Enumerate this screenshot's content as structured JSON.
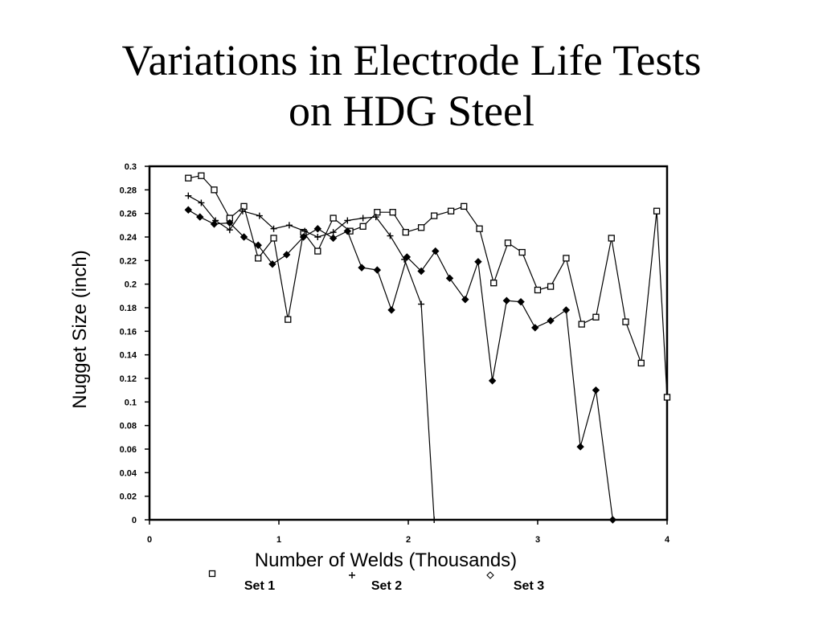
{
  "slide": {
    "title_line1": "Variations in Electrode Life Tests",
    "title_line2": "on HDG Steel"
  },
  "chart_data": {
    "type": "line",
    "title": "",
    "xlabel": "Number of Welds (Thousands)",
    "ylabel": "Nugget Size (inch)",
    "xlim": [
      0,
      4
    ],
    "ylim": [
      0,
      0.3
    ],
    "x_ticks": [
      "0",
      "1",
      "2",
      "3",
      "4"
    ],
    "y_ticks": [
      "0",
      "0.02",
      "0.04",
      "0.06",
      "0.08",
      "0.1",
      "0.12",
      "0.14",
      "0.16",
      "0.18",
      "0.2",
      "0.22",
      "0.24",
      "0.26",
      "0.28",
      "0.3"
    ],
    "grid": false,
    "legend_position": "bottom",
    "series": [
      {
        "name": "Set 1",
        "marker": "square",
        "points": [
          [
            0.3,
            0.29
          ],
          [
            0.4,
            0.292
          ],
          [
            0.5,
            0.28
          ],
          [
            0.62,
            0.256
          ],
          [
            0.73,
            0.266
          ],
          [
            0.84,
            0.222
          ],
          [
            0.96,
            0.239
          ],
          [
            1.07,
            0.17
          ],
          [
            1.19,
            0.244
          ],
          [
            1.3,
            0.228
          ],
          [
            1.42,
            0.256
          ],
          [
            1.55,
            0.245
          ],
          [
            1.65,
            0.249
          ],
          [
            1.76,
            0.261
          ],
          [
            1.88,
            0.261
          ],
          [
            1.98,
            0.244
          ],
          [
            2.1,
            0.248
          ],
          [
            2.2,
            0.258
          ],
          [
            2.33,
            0.262
          ],
          [
            2.43,
            0.266
          ],
          [
            2.55,
            0.247
          ],
          [
            2.66,
            0.201
          ],
          [
            2.77,
            0.235
          ],
          [
            2.88,
            0.227
          ],
          [
            3.0,
            0.195
          ],
          [
            3.1,
            0.198
          ],
          [
            3.22,
            0.222
          ],
          [
            3.34,
            0.166
          ],
          [
            3.45,
            0.172
          ],
          [
            3.57,
            0.239
          ],
          [
            3.68,
            0.168
          ],
          [
            3.8,
            0.133
          ],
          [
            3.92,
            0.262
          ],
          [
            4.0,
            0.104
          ]
        ]
      },
      {
        "name": "Set 2",
        "marker": "plus",
        "points": [
          [
            0.3,
            0.275
          ],
          [
            0.4,
            0.269
          ],
          [
            0.51,
            0.254
          ],
          [
            0.62,
            0.246
          ],
          [
            0.72,
            0.262
          ],
          [
            0.85,
            0.258
          ],
          [
            0.96,
            0.247
          ],
          [
            1.08,
            0.25
          ],
          [
            1.2,
            0.245
          ],
          [
            1.3,
            0.24
          ],
          [
            1.42,
            0.244
          ],
          [
            1.53,
            0.254
          ],
          [
            1.65,
            0.256
          ],
          [
            1.75,
            0.257
          ],
          [
            1.86,
            0.241
          ],
          [
            1.97,
            0.221
          ],
          [
            2.1,
            0.183
          ],
          [
            2.2,
            0.0
          ]
        ]
      },
      {
        "name": "Set 3",
        "marker": "diamond",
        "points": [
          [
            0.3,
            0.263
          ],
          [
            0.39,
            0.257
          ],
          [
            0.5,
            0.251
          ],
          [
            0.62,
            0.252
          ],
          [
            0.73,
            0.24
          ],
          [
            0.84,
            0.233
          ],
          [
            0.95,
            0.217
          ],
          [
            1.06,
            0.225
          ],
          [
            1.19,
            0.24
          ],
          [
            1.3,
            0.247
          ],
          [
            1.42,
            0.239
          ],
          [
            1.53,
            0.245
          ],
          [
            1.64,
            0.214
          ],
          [
            1.76,
            0.212
          ],
          [
            1.87,
            0.178
          ],
          [
            1.99,
            0.223
          ],
          [
            2.1,
            0.211
          ],
          [
            2.21,
            0.228
          ],
          [
            2.32,
            0.205
          ],
          [
            2.44,
            0.187
          ],
          [
            2.54,
            0.219
          ],
          [
            2.65,
            0.118
          ],
          [
            2.76,
            0.186
          ],
          [
            2.87,
            0.185
          ],
          [
            2.98,
            0.163
          ],
          [
            3.1,
            0.169
          ],
          [
            3.22,
            0.178
          ],
          [
            3.33,
            0.062
          ],
          [
            3.45,
            0.11
          ],
          [
            3.58,
            0.0
          ]
        ]
      }
    ]
  }
}
